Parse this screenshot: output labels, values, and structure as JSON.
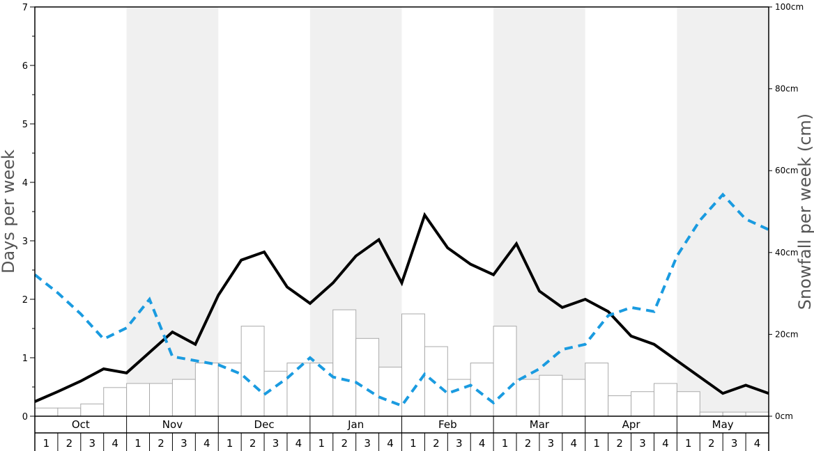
{
  "chart_data": {
    "type": "bar",
    "left_axis": {
      "label": "Days per week",
      "range": [
        0,
        7
      ],
      "ticks": [
        "0",
        "1",
        "2",
        "3",
        "4",
        "5",
        "6",
        "7"
      ]
    },
    "right_axis": {
      "label": "Snowfall per week (cm)",
      "range": [
        0,
        100
      ],
      "ticks": [
        "0cm",
        "20cm",
        "40cm",
        "60cm",
        "80cm",
        "100cm"
      ],
      "tick_values": [
        0,
        20,
        40,
        60,
        80,
        100
      ]
    },
    "months": [
      "Oct",
      "Nov",
      "Dec",
      "Jan",
      "Feb",
      "Mar",
      "Apr",
      "May"
    ],
    "week_labels": [
      "1",
      "2",
      "3",
      "4"
    ],
    "shaded_months": [
      "Nov",
      "Jan",
      "Mar",
      "May"
    ],
    "grid": false,
    "series": [
      {
        "type": "bar",
        "axis": "right",
        "unit": "cm",
        "color": "#ffffff",
        "stroke": "#aaaaaa",
        "values": [
          2.0,
          2.0,
          3.0,
          7.0,
          8.0,
          8.0,
          9.0,
          13.0,
          13.0,
          22.0,
          11.0,
          13.0,
          13.0,
          26.0,
          19.0,
          12.0,
          25.0,
          17.0,
          9.0,
          13.0,
          22.0,
          9.0,
          10.0,
          9.0,
          13.0,
          5.0,
          6.0,
          8.0,
          6.0,
          1.0,
          1.0,
          1.0
        ]
      },
      {
        "type": "line",
        "axis": "left",
        "style": "solid",
        "color": "#000000",
        "values": [
          0.25,
          0.42,
          0.6,
          0.81,
          0.74,
          1.09,
          1.44,
          1.23,
          2.07,
          2.67,
          2.81,
          2.21,
          1.93,
          2.28,
          2.74,
          3.02,
          2.28,
          3.44,
          2.88,
          2.6,
          2.42,
          2.95,
          2.14,
          1.86,
          2.0,
          1.79,
          1.37,
          1.23,
          0.95,
          0.67,
          0.39,
          0.53,
          0.39
        ]
      },
      {
        "type": "line",
        "axis": "left",
        "style": "dashed",
        "color": "#1a9be0",
        "values": [
          2.42,
          2.11,
          1.75,
          1.32,
          1.51,
          2.0,
          1.02,
          0.95,
          0.88,
          0.72,
          0.37,
          0.65,
          1.0,
          0.67,
          0.58,
          0.33,
          0.18,
          0.72,
          0.39,
          0.53,
          0.23,
          0.6,
          0.81,
          1.14,
          1.23,
          1.72,
          1.86,
          1.79,
          2.74,
          3.35,
          3.79,
          3.37,
          3.19
        ]
      }
    ]
  }
}
